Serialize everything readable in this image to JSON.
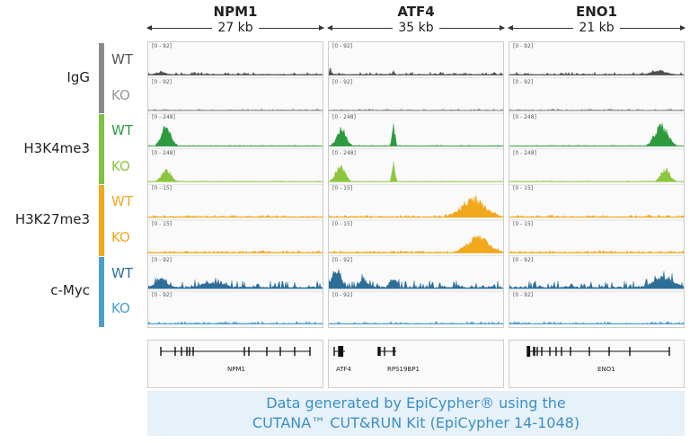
{
  "chart_data": {
    "type": "area",
    "loci": [
      {
        "name": "NPM1",
        "size": "27 kb",
        "span_kb": 27,
        "genes": [
          {
            "label": "NPM1"
          }
        ]
      },
      {
        "name": "ATF4",
        "size": "35 kb",
        "span_kb": 35,
        "genes": [
          {
            "label": "ATF4"
          },
          {
            "label": "RPS19BP1"
          }
        ]
      },
      {
        "name": "ENO1",
        "size": "21 kb",
        "span_kb": 21,
        "genes": [
          {
            "label": "ENO1"
          }
        ]
      }
    ],
    "groups": [
      {
        "name": "IgG",
        "color": "#8a8a8a",
        "tracks": [
          {
            "condition": "WT",
            "range": "[0 - 92]",
            "max": 92,
            "color": "#4d4d4d",
            "cond_color": "#555555",
            "baseline": 0.05,
            "peaks": [
              [
                [
                  2,
                  0.08,
                  2
                ]
              ],
              [
                [
                  0.3,
                  0.35,
                  0.4
                ],
                [
                  13,
                  0.15,
                  0.6
                ]
              ],
              [
                [
                  18,
                  0.12,
                  3
                ]
              ]
            ]
          },
          {
            "condition": "KO",
            "range": "[0 - 92]",
            "max": 92,
            "color": "#8a8a8a",
            "cond_color": "#999999",
            "baseline": 0.03,
            "peaks": [
              [],
              [],
              []
            ]
          }
        ]
      },
      {
        "name": "H3K4me3",
        "color": "#7dc242",
        "tracks": [
          {
            "condition": "WT",
            "range": "[0 - 248]",
            "max": 248,
            "color": "#2e9a3e",
            "cond_color": "#2e9a3e",
            "baseline": 0.01,
            "peaks": [
              [
                [
                  2.8,
                  0.85,
                  2.4
                ]
              ],
              [
                [
                  2.5,
                  0.75,
                  3
                ],
                [
                  13,
                  0.85,
                  1
                ]
              ],
              [
                [
                  18.3,
                  0.85,
                  2.6
                ]
              ]
            ]
          },
          {
            "condition": "KO",
            "range": "[0 - 248]",
            "max": 248,
            "color": "#8cc63f",
            "cond_color": "#8cc63f",
            "baseline": 0.01,
            "peaks": [
              [
                [
                  2.8,
                  0.5,
                  2.4
                ]
              ],
              [
                [
                  2.3,
                  0.65,
                  3
                ],
                [
                  13,
                  0.8,
                  1
                ]
              ],
              [
                [
                  18.8,
                  0.55,
                  1.8
                ]
              ]
            ]
          }
        ]
      },
      {
        "name": "H3K27me3",
        "color": "#f2a81d",
        "tracks": [
          {
            "condition": "WT",
            "range": "[0 - 15]",
            "max": 15,
            "color": "#f2a81d",
            "cond_color": "#f2a81d",
            "baseline": 0.04,
            "peaks": [
              [],
              [
                [
                  29,
                  0.75,
                  8
                ]
              ],
              []
            ]
          },
          {
            "condition": "KO",
            "range": "[0 - 15]",
            "max": 15,
            "color": "#f2a81d",
            "cond_color": "#f2a81d",
            "baseline": 0.04,
            "peaks": [
              [],
              [
                [
                  30,
                  0.65,
                  7
                ]
              ],
              []
            ]
          }
        ]
      },
      {
        "name": "c-Myc",
        "color": "#4a9fd1",
        "tracks": [
          {
            "condition": "WT",
            "range": "[0 - 92]",
            "max": 92,
            "color": "#2d6e99",
            "cond_color": "#2d6e99",
            "baseline": 0.15,
            "peaks": [
              [
                [
                  2,
                  0.35,
                  3
                ],
                [
                  10,
                  0.2,
                  6
                ]
              ],
              [
                [
                  1.5,
                  0.85,
                  3
                ],
                [
                  13,
                  0.4,
                  2
                ],
                [
                  7,
                  0.3,
                  3
                ]
              ],
              [
                [
                  18.5,
                  0.45,
                  4
                ]
              ]
            ]
          },
          {
            "condition": "KO",
            "range": "[0 - 92]",
            "max": 92,
            "color": "#4a9fd1",
            "cond_color": "#4a9fd1",
            "baseline": 0.05,
            "peaks": [
              [],
              [],
              []
            ]
          }
        ]
      }
    ]
  },
  "footer": {
    "line1": "Data generated by EpiCypher® using the",
    "line2": "CUTANA™ CUT&RUN Kit (EpiCypher 14-1048)"
  }
}
